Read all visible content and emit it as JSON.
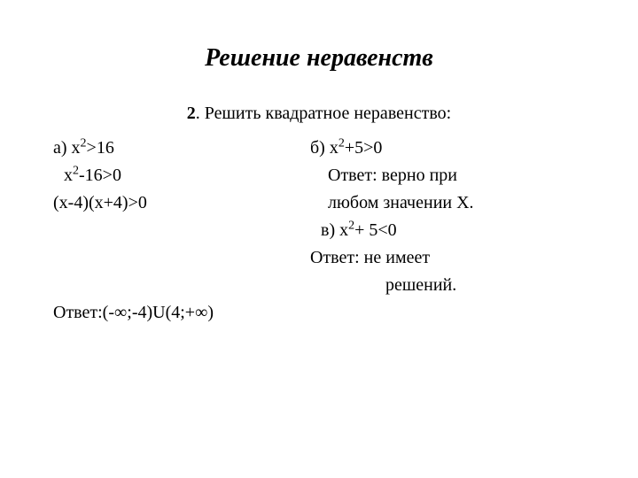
{
  "title": "Решение неравенств",
  "subtitle_num": "2",
  "subtitle_text": ". Решить квадратное неравенство:",
  "left": {
    "line1_a": "а) x",
    "line1_b": ">16",
    "line2_a": "x",
    "line2_b": "-16>0",
    "line3": "(х-4)(х+4)>0",
    "answer": "Ответ:(-∞;-4)U(4;+∞)"
  },
  "right": {
    "line1_a": "б) x",
    "line1_b": "+5>0",
    "line2": "Ответ: верно при",
    "line3": "любом значении Х.",
    "line4_a": "в) x",
    "line4_b": "+ 5<0",
    "line5": "Ответ: не имеет",
    "line6": "решений."
  },
  "exp": "2"
}
